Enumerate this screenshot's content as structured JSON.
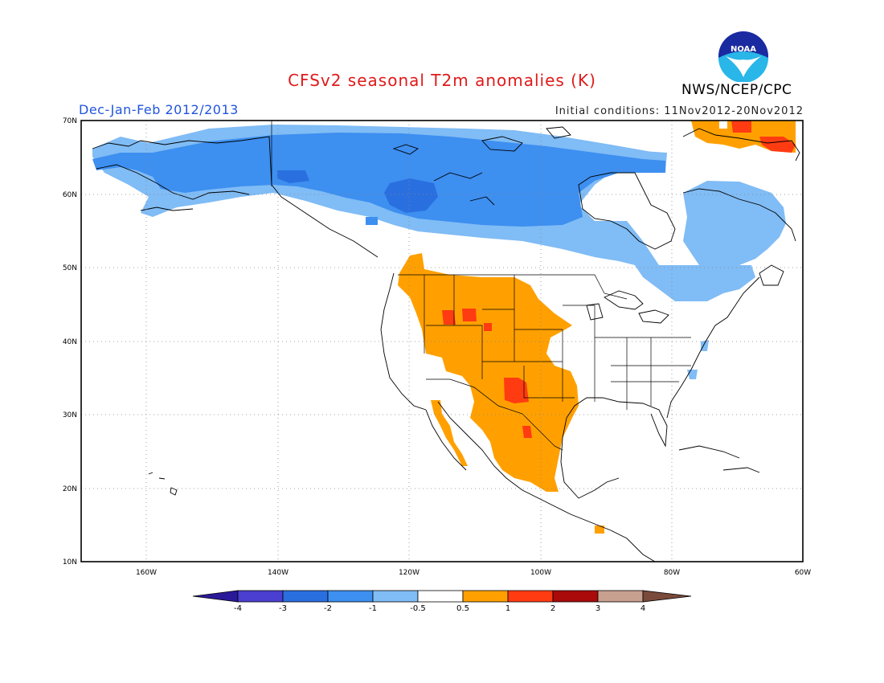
{
  "header": {
    "title": "CFSv2 seasonal T2m anomalies (K)",
    "season": "Dec-Jan-Feb 2012/2013",
    "initial_conditions": "Initial conditions: 11Nov2012-20Nov2012",
    "agency": "NWS/NCEP/CPC",
    "logo_text": "NOAA"
  },
  "map": {
    "projection": "lat-lon",
    "lon_range": [
      "170W",
      "60W"
    ],
    "lat_range": [
      "10N",
      "70N"
    ],
    "lon_ticks": [
      "160W",
      "140W",
      "120W",
      "100W",
      "80W",
      "60W"
    ],
    "lat_ticks": [
      "70N",
      "60N",
      "50N",
      "40N",
      "30N",
      "20N",
      "10N"
    ],
    "grid": "dotted",
    "regions": [
      {
        "name": "cold anomaly band across Alaska and Canada",
        "category": "-1 to -0.5"
      },
      {
        "name": "core cold anomaly over western Canada",
        "category": "-2 to -1"
      },
      {
        "name": "Quebec/Labrador cold anomaly",
        "category": "-1 to -0.5"
      },
      {
        "name": "Warm anomaly over western/central US and Mexico",
        "category": "0.5 to 1"
      },
      {
        "name": "Strong warm spots Montana and Texas",
        "category": "1 to 2"
      },
      {
        "name": "Greenland warm anomaly",
        "category": "0.5 to 2"
      }
    ]
  },
  "colorbar": {
    "labels": [
      "-4",
      "-3",
      "-2",
      "-1",
      "-0.5",
      "0.5",
      "1",
      "2",
      "3",
      "4"
    ],
    "colors": [
      "#2a1a9a",
      "#4a3fd0",
      "#2a6fe0",
      "#3d8ff0",
      "#80bcf5",
      "#ffffff",
      "#ffa000",
      "#ff3b12",
      "#aa0a0a",
      "#c8a090",
      "#7a4a3a"
    ]
  }
}
